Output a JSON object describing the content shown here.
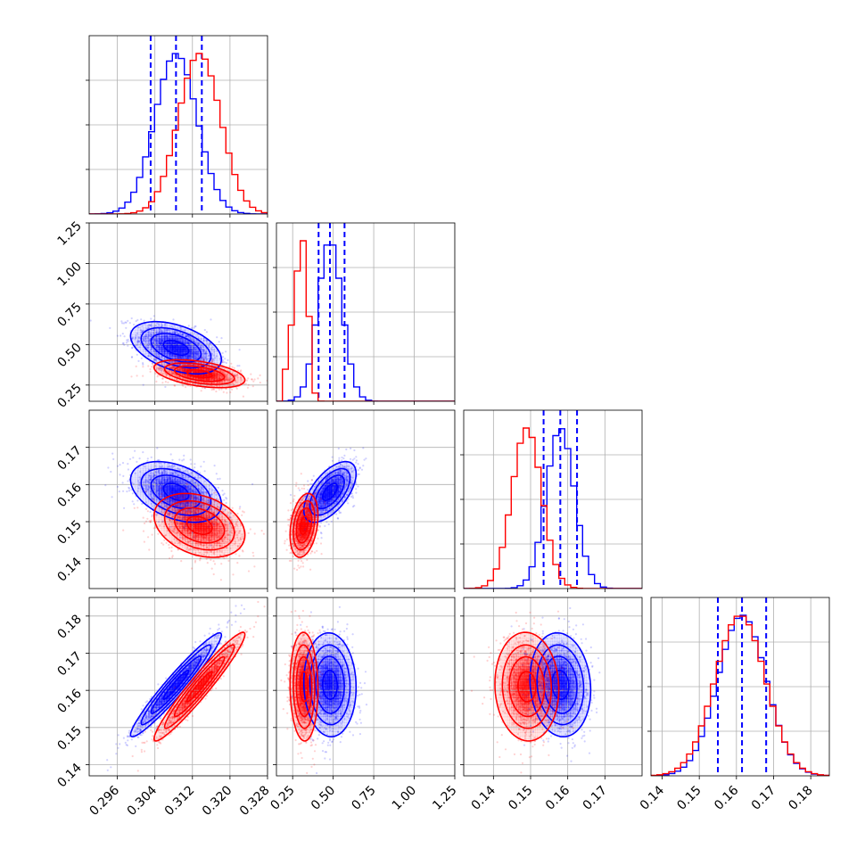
{
  "chart_data": {
    "type": "corner",
    "colors": {
      "blue": "#0000ff",
      "red": "#ff0000"
    },
    "params": [
      {
        "range": [
          0.29,
          0.328
        ],
        "ticks": [
          0.296,
          0.304,
          0.312,
          0.32,
          0.328
        ],
        "tick_labels": [
          "0.296",
          "0.304",
          "0.312",
          "0.320",
          "0.328"
        ]
      },
      {
        "range": [
          0.15,
          1.25
        ],
        "ticks": [
          0.25,
          0.5,
          0.75,
          1.0,
          1.25
        ],
        "tick_labels": [
          "0.25",
          "0.50",
          "0.75",
          "1.00",
          "1.25"
        ]
      },
      {
        "range": [
          0.132,
          0.18
        ],
        "ticks": [
          0.14,
          0.15,
          0.16,
          0.17
        ],
        "tick_labels": [
          "0.14",
          "0.15",
          "0.16",
          "0.17"
        ]
      },
      {
        "range": [
          0.137,
          0.185
        ],
        "ticks": [
          0.14,
          0.15,
          0.16,
          0.17,
          0.18
        ],
        "tick_labels": [
          "0.14",
          "0.15",
          "0.16",
          "0.17",
          "0.18"
        ]
      }
    ],
    "series": [
      {
        "name": "",
        "color": "blue",
        "mean": [
          0.3085,
          0.48,
          0.158,
          0.1615
        ],
        "sd": [
          0.0045,
          0.075,
          0.0038,
          0.0065
        ],
        "corr": [
          [
            1,
            -0.45,
            -0.4,
            0.96
          ],
          [
            -0.45,
            1,
            0.6,
            -0.05
          ],
          [
            -0.4,
            0.6,
            1,
            -0.1
          ],
          [
            0.96,
            -0.05,
            -0.1,
            1
          ]
        ],
        "quantile_lines": [
          [
            0.3031,
            0.3085,
            0.314
          ],
          [
            0.41,
            0.48,
            0.57
          ],
          [
            0.1535,
            0.158,
            0.1625
          ],
          [
            0.155,
            0.1615,
            0.168
          ]
        ]
      },
      {
        "name": "",
        "color": "red",
        "mean": [
          0.3135,
          0.32,
          0.149,
          0.161
        ],
        "sd": [
          0.0045,
          0.04,
          0.004,
          0.0068
        ],
        "corr": [
          [
            1,
            -0.45,
            -0.3,
            0.96
          ],
          [
            -0.45,
            1,
            0.3,
            -0.05
          ],
          [
            -0.3,
            0.3,
            1,
            -0.05
          ],
          [
            0.96,
            -0.05,
            -0.05,
            1
          ]
        ],
        "quantile_lines": []
      }
    ]
  }
}
